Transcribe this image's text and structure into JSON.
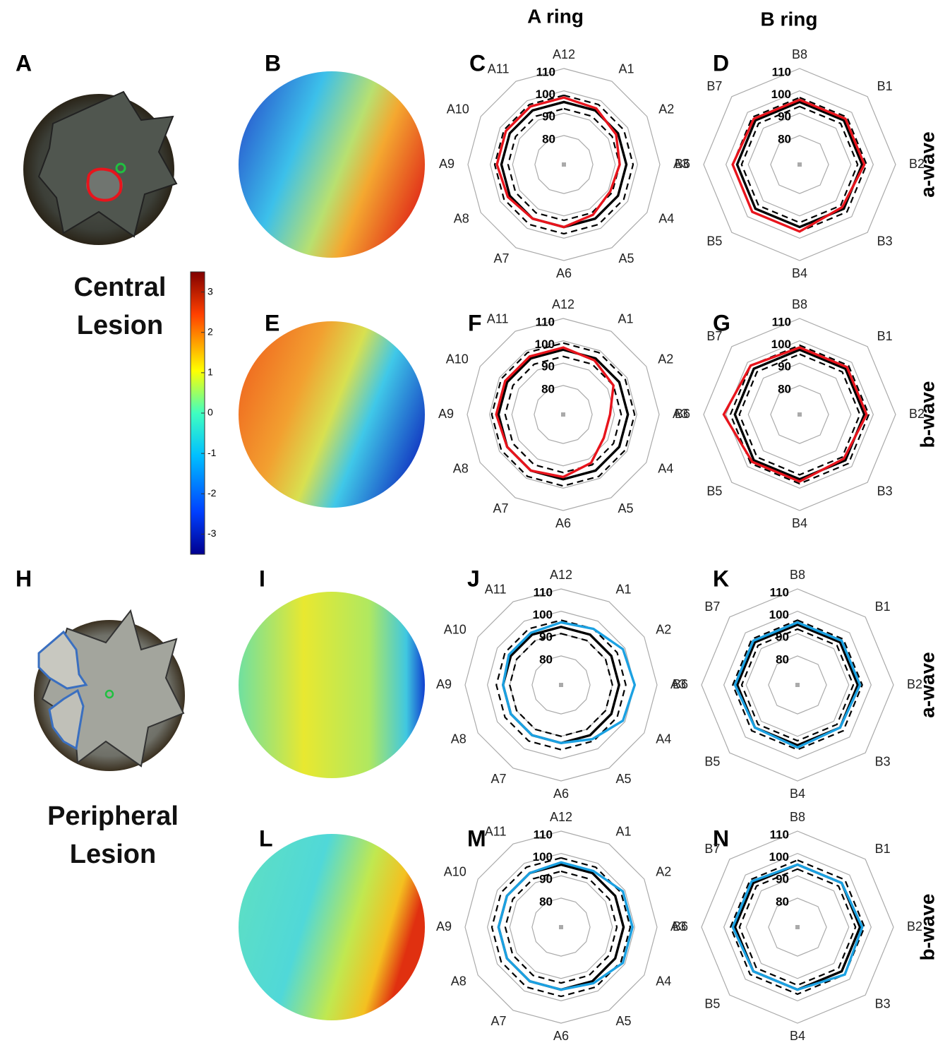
{
  "columns": [
    "A ring",
    "B ring"
  ],
  "rows": [
    "a-wave",
    "b-wave",
    "a-wave",
    "b-wave"
  ],
  "groups": [
    "Central Lesion",
    "Peripheral Lesion"
  ],
  "panel_letters": [
    "A",
    "B",
    "C",
    "D",
    "E",
    "F",
    "G",
    "H",
    "I",
    "J",
    "K",
    "L",
    "M",
    "N"
  ],
  "colorbar": {
    "ylim": [
      -3.5,
      3.5
    ],
    "yticks": [
      -3,
      -2,
      -1,
      0,
      1,
      2,
      3
    ]
  },
  "chart_data": [
    {
      "type": "radar",
      "categories": [
        "A12",
        "A1",
        "A2",
        "A3",
        "A4",
        "A5",
        "A6",
        "A7",
        "A8",
        "A9",
        "A10",
        "A11"
      ],
      "rlim": [
        67,
        110
      ],
      "rticks": [
        80,
        90,
        100,
        110
      ],
      "series": [
        {
          "color": "#000000",
          "style": "dashed",
          "values": [
            98,
            98,
            98,
            98,
            98,
            98,
            98,
            98,
            98,
            98,
            98,
            98
          ]
        },
        {
          "color": "#000000",
          "style": "dashed",
          "values": [
            92,
            92,
            92,
            92,
            92,
            92,
            92,
            92,
            92,
            92,
            92,
            92
          ]
        },
        {
          "color": "#000000",
          "style": "solid",
          "values": [
            95,
            95,
            95,
            95,
            95,
            95,
            95,
            95,
            95,
            95,
            95,
            95
          ]
        },
        {
          "color": "#e8141c",
          "style": "solid",
          "values": [
            97,
            96,
            94,
            92,
            91,
            93,
            95,
            95,
            96,
            97,
            97,
            97
          ]
        }
      ]
    },
    {
      "type": "radar",
      "categories": [
        "B8",
        "B1",
        "B2",
        "B3",
        "B4",
        "B5",
        "B6",
        "B7"
      ],
      "rlim": [
        67,
        110
      ],
      "rticks": [
        80,
        90,
        100,
        110
      ],
      "series": [
        {
          "color": "#000000",
          "style": "dashed",
          "values": [
            97,
            97,
            97,
            97,
            97,
            97,
            97,
            97
          ]
        },
        {
          "color": "#000000",
          "style": "dashed",
          "values": [
            93,
            93,
            93,
            93,
            93,
            93,
            93,
            93
          ]
        },
        {
          "color": "#000000",
          "style": "solid",
          "values": [
            95,
            95,
            95,
            95,
            95,
            95,
            95,
            95
          ]
        },
        {
          "color": "#e8141c",
          "style": "solid",
          "values": [
            96,
            96,
            96,
            94,
            97,
            97,
            97,
            96
          ]
        }
      ]
    },
    {
      "type": "radar",
      "categories": [
        "A12",
        "A1",
        "A2",
        "A3",
        "A4",
        "A5",
        "A6",
        "A7",
        "A8",
        "A9",
        "A10",
        "A11"
      ],
      "rlim": [
        67,
        110
      ],
      "rticks": [
        80,
        90,
        100,
        110
      ],
      "series": [
        {
          "color": "#000000",
          "style": "dashed",
          "values": [
            99,
            99,
            99,
            99,
            99,
            99,
            99,
            99,
            99,
            99,
            99,
            99
          ]
        },
        {
          "color": "#000000",
          "style": "dashed",
          "values": [
            93,
            93,
            93,
            93,
            93,
            93,
            93,
            93,
            93,
            93,
            93,
            93
          ]
        },
        {
          "color": "#000000",
          "style": "solid",
          "values": [
            96,
            96,
            96,
            96,
            96,
            96,
            96,
            96,
            96,
            96,
            96,
            96
          ]
        },
        {
          "color": "#e8141c",
          "style": "solid",
          "values": [
            97,
            95,
            93,
            88,
            88,
            92,
            95,
            96,
            96,
            97,
            97,
            97
          ]
        }
      ]
    },
    {
      "type": "radar",
      "categories": [
        "B8",
        "B1",
        "B2",
        "B3",
        "B4",
        "B5",
        "B6",
        "B7"
      ],
      "rlim": [
        67,
        110
      ],
      "rticks": [
        80,
        90,
        100,
        110
      ],
      "series": [
        {
          "color": "#000000",
          "style": "dashed",
          "values": [
            98,
            98,
            98,
            98,
            98,
            98,
            98,
            98
          ]
        },
        {
          "color": "#000000",
          "style": "dashed",
          "values": [
            94,
            94,
            94,
            94,
            94,
            94,
            94,
            94
          ]
        },
        {
          "color": "#000000",
          "style": "solid",
          "values": [
            96,
            96,
            96,
            96,
            96,
            96,
            96,
            96
          ]
        },
        {
          "color": "#e8141c",
          "style": "solid",
          "values": [
            97,
            97,
            97,
            95,
            97,
            97,
            101,
            98
          ]
        }
      ]
    },
    {
      "type": "radar",
      "categories": [
        "A12",
        "A1",
        "A2",
        "A3",
        "A4",
        "A5",
        "A6",
        "A7",
        "A8",
        "A9",
        "A10",
        "A11"
      ],
      "rlim": [
        67,
        110
      ],
      "rticks": [
        80,
        90,
        100,
        110
      ],
      "series": [
        {
          "color": "#000000",
          "style": "dashed",
          "values": [
            96,
            96,
            96,
            96,
            96,
            96,
            96,
            96,
            96,
            96,
            96,
            96
          ]
        },
        {
          "color": "#000000",
          "style": "dashed",
          "values": [
            90,
            90,
            90,
            90,
            90,
            90,
            90,
            90,
            90,
            90,
            90,
            90
          ]
        },
        {
          "color": "#000000",
          "style": "solid",
          "values": [
            93,
            93,
            93,
            93,
            93,
            93,
            93,
            93,
            93,
            93,
            93,
            93
          ]
        },
        {
          "color": "#1ba1e2",
          "style": "solid",
          "values": [
            95,
            96,
            99,
            100,
            99,
            95,
            93,
            93,
            93,
            93,
            94,
            94
          ]
        }
      ]
    },
    {
      "type": "radar",
      "categories": [
        "B8",
        "B1",
        "B2",
        "B3",
        "B4",
        "B5",
        "B6",
        "B7"
      ],
      "rlim": [
        67,
        110
      ],
      "rticks": [
        80,
        90,
        100,
        110
      ],
      "series": [
        {
          "color": "#000000",
          "style": "dashed",
          "values": [
            96,
            96,
            96,
            96,
            96,
            96,
            96,
            96
          ]
        },
        {
          "color": "#000000",
          "style": "dashed",
          "values": [
            92,
            92,
            92,
            92,
            92,
            92,
            92,
            92
          ]
        },
        {
          "color": "#000000",
          "style": "solid",
          "values": [
            94,
            94,
            94,
            94,
            94,
            94,
            94,
            94
          ]
        },
        {
          "color": "#1ba1e2",
          "style": "solid",
          "values": [
            95,
            95,
            95,
            94,
            95,
            94,
            95,
            95
          ]
        }
      ]
    },
    {
      "type": "radar",
      "categories": [
        "A12",
        "A1",
        "A2",
        "A3",
        "A4",
        "A5",
        "A6",
        "A7",
        "A8",
        "A9",
        "A10",
        "A11"
      ],
      "rlim": [
        67,
        110
      ],
      "rticks": [
        80,
        90,
        100,
        110
      ],
      "series": [
        {
          "color": "#000000",
          "style": "dashed",
          "values": [
            98,
            98,
            98,
            98,
            98,
            98,
            98,
            98,
            98,
            98,
            98,
            98
          ]
        },
        {
          "color": "#000000",
          "style": "dashed",
          "values": [
            92,
            92,
            92,
            92,
            92,
            92,
            92,
            92,
            92,
            92,
            92,
            92
          ]
        },
        {
          "color": "#000000",
          "style": "solid",
          "values": [
            95,
            95,
            95,
            95,
            95,
            95,
            95,
            95,
            95,
            95,
            95,
            95
          ]
        },
        {
          "color": "#1ba1e2",
          "style": "solid",
          "values": [
            96,
            96,
            99,
            99,
            99,
            96,
            95,
            95,
            95,
            95,
            95,
            95
          ]
        }
      ]
    },
    {
      "type": "radar",
      "categories": [
        "B8",
        "B1",
        "B2",
        "B3",
        "B4",
        "B5",
        "B6",
        "B7"
      ],
      "rlim": [
        67,
        110
      ],
      "rticks": [
        80,
        90,
        100,
        110
      ],
      "series": [
        {
          "color": "#000000",
          "style": "dashed",
          "values": [
            97,
            97,
            97,
            97,
            97,
            97,
            97,
            97
          ]
        },
        {
          "color": "#000000",
          "style": "dashed",
          "values": [
            93,
            93,
            93,
            93,
            93,
            93,
            93,
            93
          ]
        },
        {
          "color": "#000000",
          "style": "solid",
          "values": [
            95,
            95,
            95,
            95,
            95,
            95,
            95,
            95
          ]
        },
        {
          "color": "#1ba1e2",
          "style": "solid",
          "values": [
            95,
            95,
            96,
            97,
            95,
            95,
            96,
            96
          ]
        }
      ]
    }
  ]
}
